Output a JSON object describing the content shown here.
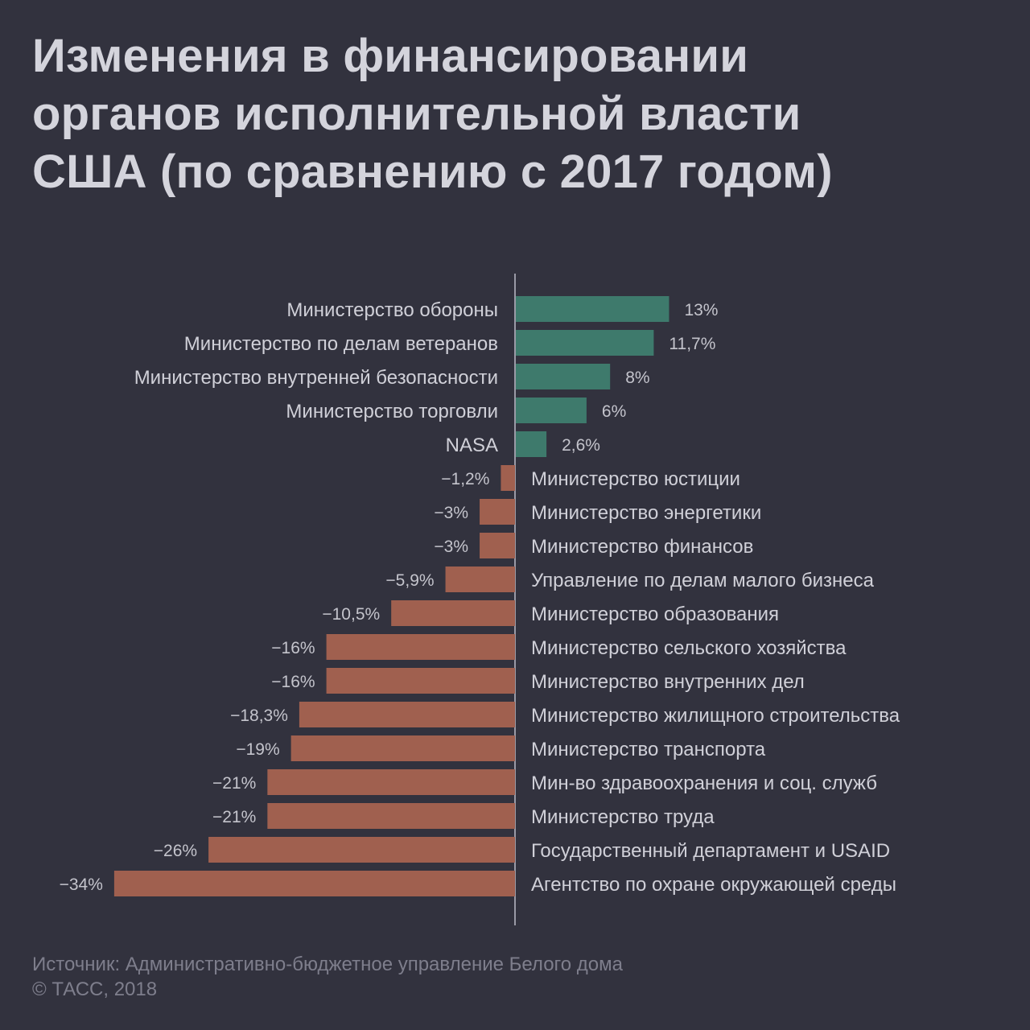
{
  "title": {
    "line1": "Изменения в финансировании",
    "line2": "органов исполнительной власти",
    "line3": "США (по сравнению с 2017 годом)"
  },
  "footer": {
    "source": "Источник: Административно-бюджетное управление Белого дома",
    "copyright": "© ТАСС, 2018"
  },
  "colors": {
    "background": "#32323e",
    "positive": "#3e7a6c",
    "negative": "#a0604f",
    "axis": "#9a9aa6",
    "label": "#d0d0d8",
    "value": "#c4c4cc"
  },
  "chart_data": {
    "type": "bar",
    "orientation": "horizontal",
    "xlim": [
      -34,
      13
    ],
    "grid": false,
    "categories": [
      "Министерство обороны",
      "Министерство по делам ветеранов",
      "Министерство внутренней безопасности",
      "Министерство торговли",
      "NASA",
      "Министерство юстиции",
      "Министерство энергетики",
      "Министерство финансов",
      "Управление по делам малого бизнеса",
      "Министерство образования",
      "Министерство сельского хозяйства",
      "Министерство внутренних дел",
      "Министерство жилищного строительства",
      "Министерство транспорта",
      "Мин-во здравоохранения и соц. служб",
      "Министерство труда",
      "Государственный департамент и USAID",
      "Агентство по охране окружающей среды"
    ],
    "values": [
      13,
      11.7,
      8,
      6,
      2.6,
      -1.2,
      -3,
      -3,
      -5.9,
      -10.5,
      -16,
      -16,
      -18.3,
      -19,
      -21,
      -21,
      -26,
      -34
    ],
    "value_labels": [
      "13%",
      "11,7%",
      "8%",
      "6%",
      "2,6%",
      "−1,2%",
      "−3%",
      "−3%",
      "−5,9%",
      "−10,5%",
      "−16%",
      "−16%",
      "−18,3%",
      "−19%",
      "−21%",
      "−21%",
      "−26%",
      "−34%"
    ]
  }
}
